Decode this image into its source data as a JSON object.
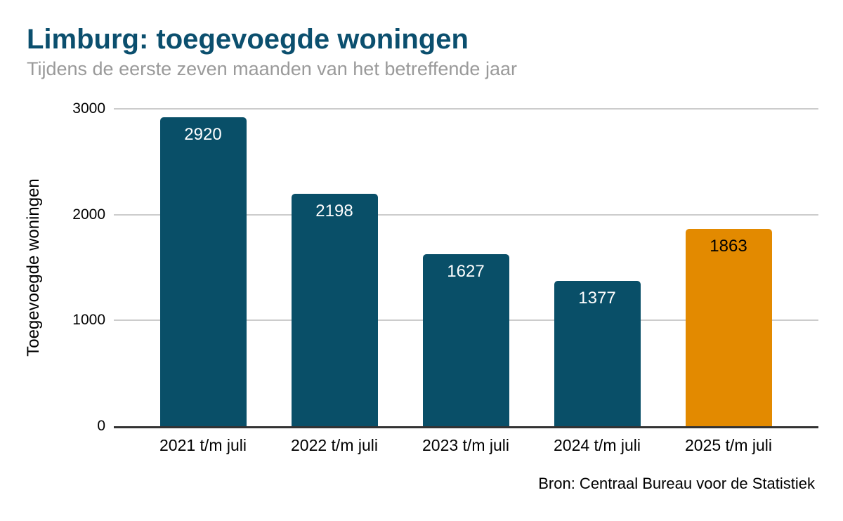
{
  "chart_data": {
    "type": "bar",
    "title": "Limburg: toegevoegde woningen",
    "subtitle": "Tijdens de eerste zeven maanden van het betreffende jaar",
    "ylabel": "Toegevoegde woningen",
    "xlabel": "",
    "source": "Bron: Centraal Bureau voor de Statistiek",
    "categories": [
      "2021 t/m juli",
      "2022 t/m juli",
      "2023 t/m juli",
      "2024 t/m juli",
      "2025 t/m juli"
    ],
    "values": [
      2920,
      2198,
      1627,
      1377,
      1863
    ],
    "value_labels": [
      "2920",
      "2198",
      "1627",
      "1377",
      "1863"
    ],
    "ylim": [
      0,
      3000
    ],
    "yticks": [
      0,
      1000,
      2000,
      3000
    ],
    "grid": true,
    "legend": false,
    "highlight_index": 4,
    "bar_colors": [
      "#094f68",
      "#094f68",
      "#094f68",
      "#094f68",
      "#e38a00"
    ],
    "value_label_colors": [
      "#ffffff",
      "#ffffff",
      "#ffffff",
      "#ffffff",
      "#000000"
    ],
    "colors": {
      "title": "#0b4f6e",
      "subtitle": "#9a9a9a",
      "gridline": "#cccccc",
      "axis_line": "#333333",
      "text": "#000000"
    }
  }
}
